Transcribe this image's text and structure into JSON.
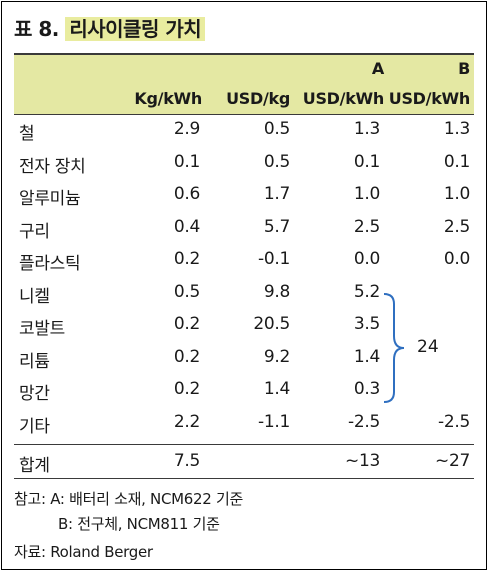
{
  "title": {
    "prefix": "표 8.",
    "highlight": "리사이클링 가치"
  },
  "header": {
    "group_a": "A",
    "group_b": "B",
    "columns": [
      "Kg/kWh",
      "USD/kg",
      "USD/kWh",
      "USD/kWh"
    ]
  },
  "rows": [
    {
      "label": "철",
      "v": [
        "2.9",
        "0.5",
        "1.3",
        "1.3"
      ]
    },
    {
      "label": "전자 장치",
      "v": [
        "0.1",
        "0.5",
        "0.1",
        "0.1"
      ]
    },
    {
      "label": "알루미늄",
      "v": [
        "0.6",
        "1.7",
        "1.0",
        "1.0"
      ]
    },
    {
      "label": "구리",
      "v": [
        "0.4",
        "5.7",
        "2.5",
        "2.5"
      ]
    },
    {
      "label": "플라스틱",
      "v": [
        "0.2",
        "-0.1",
        "0.0",
        "0.0"
      ]
    },
    {
      "label": "니켈",
      "v": [
        "0.5",
        "9.8",
        "5.2",
        ""
      ]
    },
    {
      "label": "코발트",
      "v": [
        "0.2",
        "20.5",
        "3.5",
        ""
      ]
    },
    {
      "label": "리튬",
      "v": [
        "0.2",
        "9.2",
        "1.4",
        ""
      ]
    },
    {
      "label": "망간",
      "v": [
        "0.2",
        "1.4",
        "0.3",
        ""
      ]
    },
    {
      "label": "기타",
      "v": [
        "2.2",
        "-1.1",
        "-2.5",
        "-2.5"
      ]
    }
  ],
  "total": {
    "label": "합계",
    "v": [
      "7.5",
      "",
      "~13",
      "~27"
    ]
  },
  "brace_value": "24",
  "notes": {
    "line1": "참고: A: 배터리 소재, NCM622 기준",
    "line2": "B: 전구체, NCM811 기준",
    "source": "자료: Roland Berger"
  },
  "colors": {
    "header_bg": "#e4e8a3",
    "title_highlight": "#e9ec9f",
    "brace": "#2f6fc0"
  }
}
